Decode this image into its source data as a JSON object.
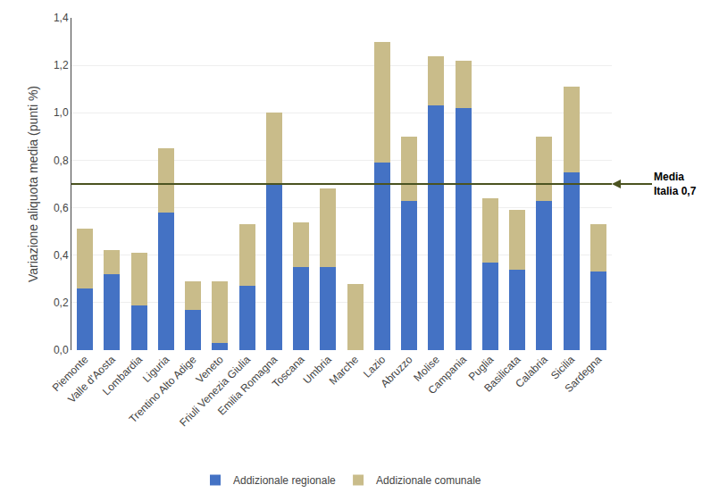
{
  "chart_data": {
    "type": "bar",
    "stacked": true,
    "categories": [
      "Piemonte",
      "Valle d'Aosta",
      "Lombardia",
      "Liguria",
      "Trentino Alto Adige",
      "Veneto",
      "Friuli Venezia Giulia",
      "Emilia Romagna",
      "Toscana",
      "Umbria",
      "Marche",
      "Lazio",
      "Abruzzo",
      "Molise",
      "Campania",
      "Puglia",
      "Basilicata",
      "Calabria",
      "Sicilia",
      "Sardegna"
    ],
    "series": [
      {
        "name": "Addizionale regionale",
        "color": "#4472C4",
        "values": [
          0.26,
          0.32,
          0.19,
          0.58,
          0.17,
          0.03,
          0.27,
          0.7,
          0.35,
          0.35,
          0.0,
          0.79,
          0.63,
          1.03,
          1.02,
          0.37,
          0.34,
          0.63,
          0.75,
          0.33
        ]
      },
      {
        "name": "Addizionale comunale",
        "color": "#C9BC8A",
        "values": [
          0.25,
          0.1,
          0.22,
          0.27,
          0.12,
          0.26,
          0.26,
          0.3,
          0.19,
          0.33,
          0.28,
          0.51,
          0.27,
          0.21,
          0.2,
          0.27,
          0.25,
          0.27,
          0.36,
          0.2
        ]
      }
    ],
    "ylabel": "Variazione aliquota media (punti %)",
    "ylim": [
      0.0,
      1.4
    ],
    "yticks": [
      {
        "value": 0.0,
        "label": "0,0"
      },
      {
        "value": 0.2,
        "label": "0,2"
      },
      {
        "value": 0.4,
        "label": "0,4"
      },
      {
        "value": 0.6,
        "label": "0,6"
      },
      {
        "value": 0.8,
        "label": "0,8"
      },
      {
        "value": 1.0,
        "label": "1,0"
      },
      {
        "value": 1.2,
        "label": "1,2"
      },
      {
        "value": 1.4,
        "label": "1,4"
      }
    ],
    "annotations": [
      {
        "text": "Media\nItalia 0,7",
        "y": 0.7,
        "color": "#4B5320"
      }
    ],
    "grid": true,
    "legend": "bottom"
  }
}
